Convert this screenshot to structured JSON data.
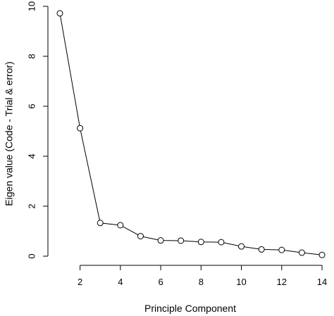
{
  "chart_data": {
    "type": "line",
    "title": "",
    "xlabel": "Principle Component",
    "ylabel": "Eigen value (Code - Trial & error)",
    "xlim": [
      1,
      14
    ],
    "ylim": [
      0,
      10
    ],
    "xticks": [
      2,
      4,
      6,
      8,
      10,
      12,
      14
    ],
    "yticks": [
      0,
      2,
      4,
      6,
      8,
      10
    ],
    "grid": false,
    "series": [
      {
        "x": [
          1,
          2,
          3,
          4,
          5,
          6,
          7,
          8,
          9,
          10,
          11,
          12,
          13,
          14
        ],
        "values": [
          9.72,
          5.12,
          1.33,
          1.24,
          0.8,
          0.63,
          0.62,
          0.57,
          0.56,
          0.39,
          0.27,
          0.25,
          0.14,
          0.05
        ],
        "marker": "open-circle",
        "line_style": "solid",
        "color": "#000000"
      }
    ]
  }
}
